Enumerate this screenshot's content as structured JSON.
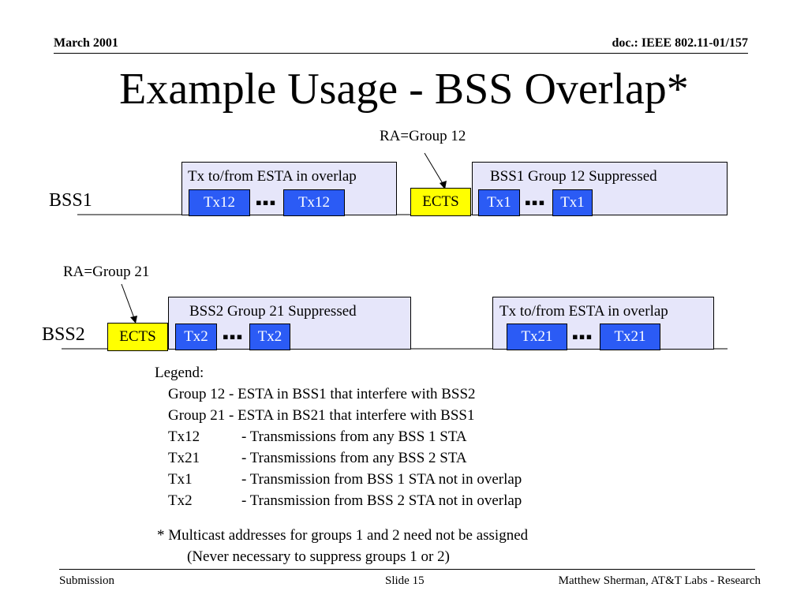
{
  "header": {
    "date": "March  2001",
    "doc": "doc.: IEEE 802.11-01/157"
  },
  "title": "Example Usage - BSS Overlap*",
  "bss1": {
    "label": "BSS1",
    "ra_label": "RA=Group 12",
    "overlap_box": {
      "caption": "Tx to/from ESTA in overlap",
      "pkt_a": "Tx12",
      "pkt_b": "Tx12"
    },
    "ects": "ECTS",
    "suppressed_box": {
      "caption": "BSS1 Group 12 Suppressed",
      "pkt_a": "Tx1",
      "pkt_b": "Tx1"
    }
  },
  "bss2": {
    "label": "BSS2",
    "ra_label": "RA=Group 21",
    "ects": "ECTS",
    "suppressed_box": {
      "caption": "BSS2 Group 21 Suppressed",
      "pkt_a": "Tx2",
      "pkt_b": "Tx2"
    },
    "overlap_box": {
      "caption": "Tx to/from ESTA in overlap",
      "pkt_a": "Tx21",
      "pkt_b": "Tx21"
    }
  },
  "dots": "▪▪▪",
  "legend": {
    "heading": "Legend:",
    "group12": "Group 12 - ESTA in BSS1 that interfere with BSS2",
    "group21": "Group 21 - ESTA in BS21 that interfere with BSS1",
    "rows": [
      {
        "term": "Tx12",
        "desc": "- Transmissions from any BSS 1 STA"
      },
      {
        "term": "Tx21",
        "desc": "- Transmissions from any BSS 2 STA"
      },
      {
        "term": "Tx1",
        "desc": "- Transmission from BSS 1 STA not in overlap"
      },
      {
        "term": "Tx2",
        "desc": "- Transmission from BSS 2 STA not in overlap"
      }
    ]
  },
  "footnote": {
    "line1": "*  Multicast addresses for groups 1 and 2 need not be assigned",
    "line2": "(Never necessary to suppress groups 1 or 2)"
  },
  "footer": {
    "left": "Submission",
    "center": "Slide 15",
    "right": "Matthew Sherman, AT&T Labs - Research"
  }
}
